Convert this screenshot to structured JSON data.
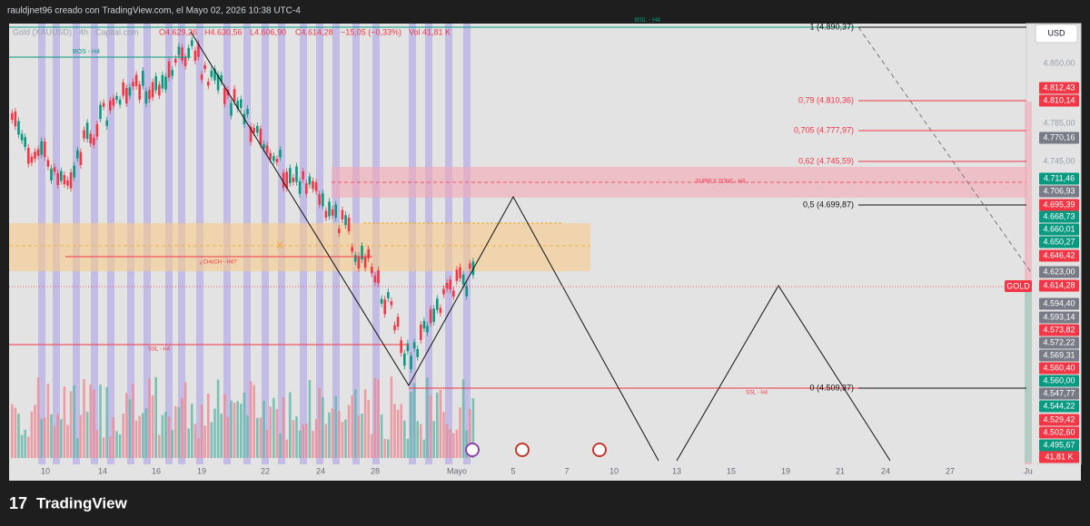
{
  "header": {
    "author_line": "rauldjnet96 creado con TradingView.com, el Mayo 02, 2026 10:38 UTC-4"
  },
  "legend": {
    "symbol": "Gold (XAUUSD) · 4h · Capital.com",
    "open": "O4.629,26",
    "high": "H4.630,56",
    "low": "L4.606,90",
    "close": "C4.614,28",
    "change": "−15,05 (−0,33%)",
    "volume": "Vol 41,81 K"
  },
  "currency": "USD",
  "annotations": {
    "bsl": "BSL - H4",
    "bos": "BOS - H4",
    "supply": "SUPPLY ZONE - H4",
    "choch": "¿CHoCH - H4?",
    "ssl_left": "SSL - H4",
    "ssl_right": "SSL - H4",
    "x_mark": "X",
    "symbol_tag": "GOLD"
  },
  "fib_levels": [
    "1 (4.890,37)",
    "0,79 (4.810,36)",
    "0,705 (4.777,97)",
    "0,62 (4.745,59)",
    "0,5 (4.699,87)",
    "0 (4.509,37)"
  ],
  "price_axis": [
    "4.850,00",
    "4.812,43",
    "4.810,14",
    "4.785,00",
    "4.770,16",
    "4.745,00",
    "4.711,46",
    "4.706,93",
    "4.695,39",
    "4.668,73",
    "4.660,01",
    "4.650,27",
    "4.646,42",
    "4.623,00",
    "4.614,28",
    "4.594,40",
    "4.593,14",
    "4.573,82",
    "4.572,22",
    "4.569,31",
    "4.560,40",
    "4.560,00",
    "4.547,77",
    "4.544,22",
    "4.529,42",
    "4.502,60",
    "4.495,67",
    "41,81 K"
  ],
  "time_axis": [
    "10",
    "14",
    "16",
    "19",
    "22",
    "24",
    "28",
    "Mayo",
    "5",
    "7",
    "10",
    "13",
    "15",
    "19",
    "21",
    "24",
    "27",
    "Ju"
  ],
  "footer": {
    "brand": "TradingView"
  }
}
